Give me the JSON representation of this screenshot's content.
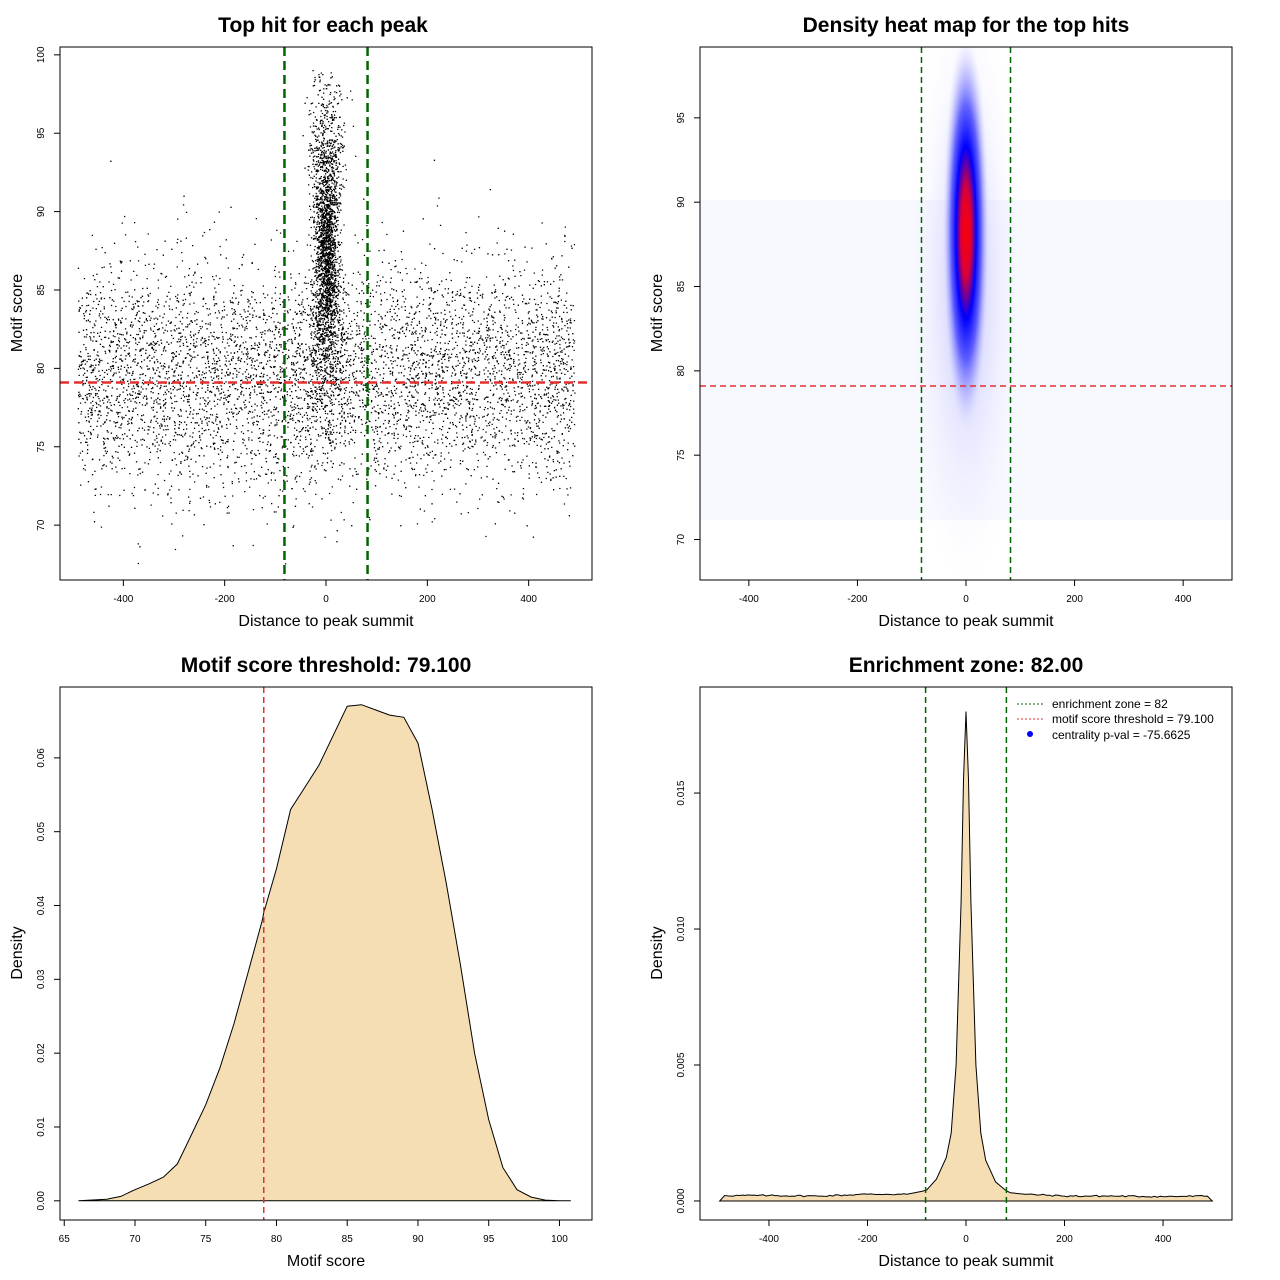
{
  "chart_data": [
    {
      "type": "scatter",
      "title": "Top hit for each peak",
      "xlabel": "Distance to peak summit",
      "ylabel": "Motif score",
      "xlim": [
        -525,
        525
      ],
      "ylim": [
        66.5,
        100.5
      ],
      "xticks": [
        -400,
        -200,
        0,
        200,
        400
      ],
      "yticks": [
        70,
        75,
        80,
        85,
        90,
        95,
        100
      ],
      "vlines": [
        -82,
        82
      ],
      "hline": 79.1,
      "colors": {
        "points": "#000000",
        "zone": "#006400",
        "threshold": "#e03030"
      },
      "distribution": {
        "central_x_sd": 18,
        "central_y_mean": 87.5,
        "central_y_sd": 5.0,
        "central_y_range": [
          73,
          99
        ],
        "background_x_range": [
          -490,
          490
        ],
        "background_y_mean": 79.5,
        "background_y_sd": 3.6,
        "background_y_range": [
          67.5,
          98
        ]
      }
    },
    {
      "type": "heatmap",
      "title": "Density heat map for the top hits",
      "xlabel": "Distance to peak summit",
      "ylabel": "Motif score",
      "xlim": [
        -490,
        490
      ],
      "ylim": [
        67.6,
        99.2
      ],
      "xticks": [
        -400,
        -200,
        0,
        200,
        400
      ],
      "yticks": [
        70,
        75,
        80,
        85,
        90,
        95
      ],
      "vlines": [
        -82,
        82
      ],
      "hline": 79.1,
      "colormap": [
        "#ffffff",
        "#0000ff",
        "#ff0000"
      ],
      "peak": {
        "x": 0,
        "y": 88.5
      },
      "colors": {
        "zone": "#006400",
        "threshold": "#e03030"
      }
    },
    {
      "type": "area",
      "title": "Motif score threshold: 79.100",
      "xlabel": "Motif score",
      "ylabel": "Density",
      "xlim": [
        64.7,
        102.3
      ],
      "ylim": [
        -0.0026,
        0.0696
      ],
      "xticks": [
        65,
        70,
        75,
        80,
        85,
        90,
        95,
        100
      ],
      "yticks": [
        0.0,
        0.01,
        0.02,
        0.03,
        0.04,
        0.05,
        0.06
      ],
      "ytick_labels": [
        "0.00",
        "0.01",
        "0.02",
        "0.03",
        "0.04",
        "0.05",
        "0.06"
      ],
      "vline": 79.1,
      "x": [
        66,
        68,
        69,
        70,
        71,
        72,
        73,
        74,
        75,
        76,
        77,
        78,
        79,
        79.1,
        80,
        81,
        82,
        83,
        84,
        85,
        86,
        87,
        88,
        89,
        90,
        91,
        92,
        93,
        94,
        95,
        96,
        97,
        98,
        99,
        100,
        100.8
      ],
      "values": [
        0.0,
        0.0002,
        0.0006,
        0.0015,
        0.0023,
        0.0032,
        0.005,
        0.009,
        0.013,
        0.018,
        0.024,
        0.031,
        0.038,
        0.039,
        0.045,
        0.053,
        0.056,
        0.059,
        0.063,
        0.067,
        0.0672,
        0.0665,
        0.0658,
        0.0655,
        0.062,
        0.053,
        0.043,
        0.032,
        0.02,
        0.011,
        0.0045,
        0.0015,
        0.0005,
        0.0001,
        2e-05,
        0.0
      ],
      "colors": {
        "fill": "#f5deb3",
        "line": "#000000",
        "threshold": "#e03030"
      }
    },
    {
      "type": "area",
      "title": "Enrichment zone: 82.00",
      "xlabel": "Distance to peak summit",
      "ylabel": "Density",
      "xlim": [
        -540,
        540
      ],
      "ylim": [
        -0.0007,
        0.0189
      ],
      "xticks": [
        -400,
        -200,
        0,
        200,
        400
      ],
      "yticks": [
        0.0,
        0.005,
        0.01,
        0.015
      ],
      "ytick_labels": [
        "0.000",
        "0.005",
        "0.010",
        "0.015"
      ],
      "vlines": [
        -82,
        82
      ],
      "x": [
        -500,
        -490,
        -400,
        -300,
        -200,
        -120,
        -90,
        -80,
        -60,
        -40,
        -30,
        -20,
        -10,
        -5,
        0,
        5,
        10,
        20,
        30,
        40,
        60,
        80,
        90,
        120,
        200,
        300,
        400,
        490,
        500
      ],
      "values": [
        0.0,
        0.0002,
        0.0002,
        0.00018,
        0.00025,
        0.00025,
        0.00035,
        0.0004,
        0.0008,
        0.0016,
        0.0025,
        0.005,
        0.011,
        0.0155,
        0.018,
        0.0155,
        0.011,
        0.005,
        0.0025,
        0.0015,
        0.0007,
        0.0004,
        0.0003,
        0.00025,
        0.00018,
        0.00018,
        0.00016,
        0.00018,
        0.0
      ],
      "legend": {
        "position": "top-right",
        "entries": [
          {
            "label": "enrichment zone = 82",
            "style": "dotted-line",
            "color": "#006400"
          },
          {
            "label": "motif score threshold = 79.100",
            "style": "dotted-line",
            "color": "#e03030"
          },
          {
            "label": "centrality p-val = -75.6625",
            "style": "point",
            "color": "#0000ff"
          }
        ]
      },
      "colors": {
        "fill": "#f5deb3",
        "line": "#000000",
        "zone": "#006400"
      }
    }
  ]
}
